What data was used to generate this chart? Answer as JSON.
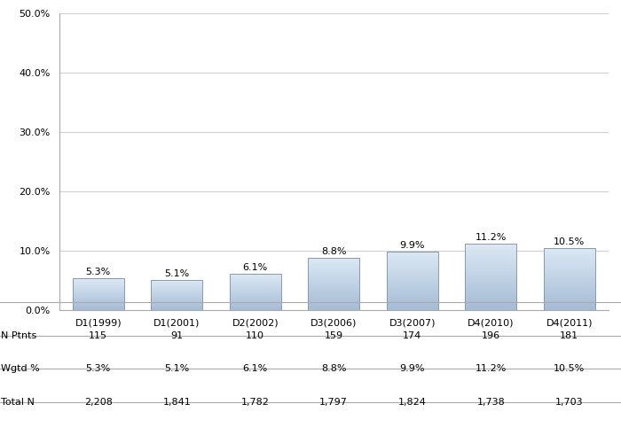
{
  "categories": [
    "D1(1999)",
    "D1(2001)",
    "D2(2002)",
    "D3(2006)",
    "D3(2007)",
    "D4(2010)",
    "D4(2011)"
  ],
  "values": [
    5.3,
    5.1,
    6.1,
    8.8,
    9.9,
    11.2,
    10.5
  ],
  "n_ptnts": [
    "115",
    "91",
    "110",
    "159",
    "174",
    "196",
    "181"
  ],
  "wgtd_pct": [
    "5.3%",
    "5.1%",
    "6.1%",
    "8.8%",
    "9.9%",
    "11.2%",
    "10.5%"
  ],
  "total_n": [
    "2,208",
    "1,841",
    "1,782",
    "1,797",
    "1,824",
    "1,738",
    "1,703"
  ],
  "ylim": [
    0,
    50
  ],
  "yticks": [
    0,
    10,
    20,
    30,
    40,
    50
  ],
  "ytick_labels": [
    "0.0%",
    "10.0%",
    "20.0%",
    "30.0%",
    "40.0%",
    "50.0%"
  ],
  "bar_color_light": "#dce9f5",
  "bar_color_dark": "#8da9c8",
  "bar_edge_color": "#8899aa",
  "label_fontsize": 8,
  "tick_fontsize": 8,
  "table_fontsize": 8,
  "background_color": "#ffffff",
  "grid_color": "#d0d0d0",
  "table_row_labels": [
    "N Ptnts",
    "Wgtd %",
    "Total N"
  ]
}
